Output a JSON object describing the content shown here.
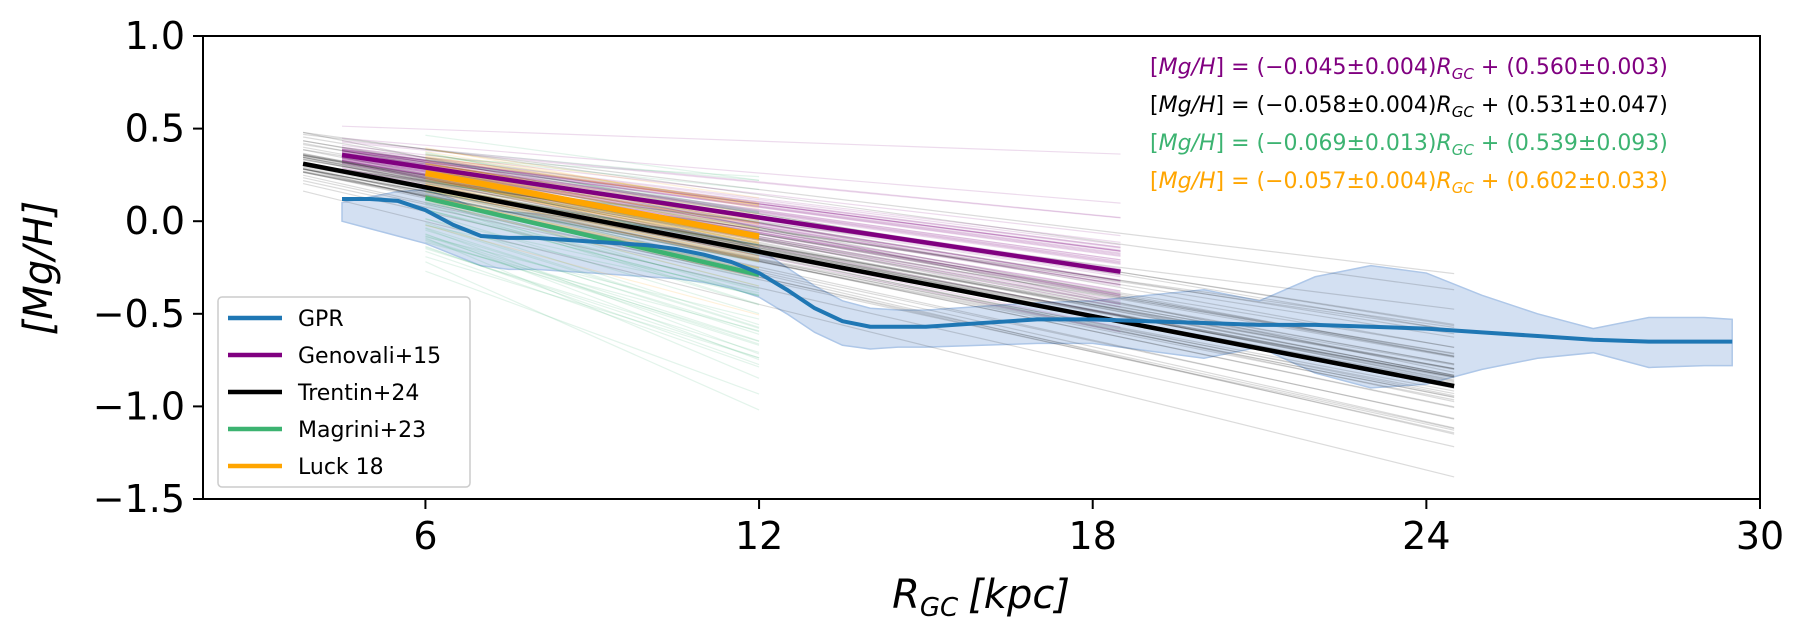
{
  "chart_data": {
    "type": "line",
    "title": "",
    "xlabel_main": "R",
    "xlabel_sub": "GC",
    "xlabel_unit": "[kpc]",
    "ylabel": "[Mg/H]",
    "xlim": [
      2,
      30
    ],
    "ylim": [
      -1.5,
      1.0
    ],
    "xticks": [
      6,
      12,
      18,
      24,
      30
    ],
    "yticks": [
      1.0,
      0.5,
      0.0,
      -0.5,
      -1.0,
      -1.5
    ],
    "xtick_labels": [
      "6",
      "12",
      "18",
      "24",
      "30"
    ],
    "ytick_labels": [
      "1.0",
      "0.5",
      "0.0",
      "−0.5",
      "−1.0",
      "−1.5"
    ],
    "legend_position": "lower-left",
    "series": [
      {
        "name": "GPR",
        "color": "#1f77b4",
        "kind": "curve",
        "x": [
          4.5,
          5.0,
          5.5,
          6.0,
          6.5,
          7.0,
          7.5,
          8.0,
          8.5,
          9.0,
          9.5,
          10.0,
          10.5,
          11.0,
          11.5,
          12.0,
          12.5,
          13.0,
          13.5,
          14.0,
          14.5,
          15.0,
          16.0,
          17.0,
          18.0,
          19.0,
          20.0,
          21.0,
          22.0,
          23.0,
          24.0,
          25.0,
          26.0,
          27.0,
          28.0,
          29.0,
          29.5
        ],
        "y": [
          0.12,
          0.12,
          0.11,
          0.06,
          -0.02,
          -0.08,
          -0.09,
          -0.09,
          -0.1,
          -0.11,
          -0.12,
          -0.13,
          -0.15,
          -0.18,
          -0.22,
          -0.28,
          -0.37,
          -0.47,
          -0.54,
          -0.57,
          -0.57,
          -0.57,
          -0.55,
          -0.53,
          -0.53,
          -0.54,
          -0.55,
          -0.56,
          -0.56,
          -0.57,
          -0.58,
          -0.6,
          -0.62,
          -0.64,
          -0.65,
          -0.65,
          -0.65
        ],
        "band_upper": [
          0.1,
          0.13,
          0.16,
          0.17,
          0.12,
          0.06,
          0.05,
          0.04,
          0.02,
          0.0,
          -0.01,
          -0.03,
          -0.04,
          -0.07,
          -0.1,
          -0.15,
          -0.25,
          -0.35,
          -0.43,
          -0.47,
          -0.48,
          -0.48,
          -0.46,
          -0.44,
          -0.43,
          -0.4,
          -0.37,
          -0.43,
          -0.3,
          -0.24,
          -0.28,
          -0.4,
          -0.5,
          -0.58,
          -0.52,
          -0.52,
          -0.53
        ],
        "band_lower": [
          0.0,
          -0.04,
          -0.08,
          -0.12,
          -0.18,
          -0.24,
          -0.26,
          -0.26,
          -0.27,
          -0.28,
          -0.29,
          -0.3,
          -0.31,
          -0.33,
          -0.36,
          -0.41,
          -0.5,
          -0.6,
          -0.67,
          -0.69,
          -0.68,
          -0.68,
          -0.67,
          -0.66,
          -0.66,
          -0.7,
          -0.74,
          -0.68,
          -0.82,
          -0.9,
          -0.88,
          -0.8,
          -0.74,
          -0.71,
          -0.79,
          -0.78,
          -0.78
        ]
      },
      {
        "name": "Genovali+15",
        "color": "#800080",
        "kind": "linear",
        "slope": -0.045,
        "slope_err": 0.004,
        "intercept": 0.56,
        "intercept_err": 0.003,
        "xrange": [
          4.5,
          18.5
        ]
      },
      {
        "name": "Trentin+24",
        "color": "#000000",
        "kind": "linear",
        "slope": -0.058,
        "slope_err": 0.004,
        "intercept": 0.531,
        "intercept_err": 0.047,
        "xrange": [
          3.8,
          24.5
        ]
      },
      {
        "name": "Magrini+23",
        "color": "#3cb371",
        "kind": "linear",
        "slope": -0.069,
        "slope_err": 0.013,
        "intercept": 0.539,
        "intercept_err": 0.093,
        "xrange": [
          6.0,
          12.0
        ]
      },
      {
        "name": "Luck 18",
        "color": "#ffa500",
        "kind": "linear",
        "slope": -0.057,
        "slope_err": 0.004,
        "intercept": 0.602,
        "intercept_err": 0.033,
        "xrange": [
          6.0,
          12.0
        ]
      }
    ],
    "annotations": [
      {
        "text_pre": "[",
        "text_var": "Mg/H",
        "text_mid": "] = (−0.045±0.004)",
        "text_r": "R",
        "text_sub": "GC",
        "text_post": " + (0.560±0.003)",
        "color": "#800080"
      },
      {
        "text_pre": "[",
        "text_var": "Mg/H",
        "text_mid": "] = (−0.058±0.004)",
        "text_r": "R",
        "text_sub": "GC",
        "text_post": " + (0.531±0.047)",
        "color": "#000000"
      },
      {
        "text_pre": "[",
        "text_var": "Mg/H",
        "text_mid": "] = (−0.069±0.013)",
        "text_r": "R",
        "text_sub": "GC",
        "text_post": " + (0.539±0.093)",
        "color": "#3cb371"
      },
      {
        "text_pre": "[",
        "text_var": "Mg/H",
        "text_mid": "] = (−0.057±0.004)",
        "text_r": "R",
        "text_sub": "GC",
        "text_post": " + (0.602±0.033)",
        "color": "#ffa500"
      }
    ]
  }
}
